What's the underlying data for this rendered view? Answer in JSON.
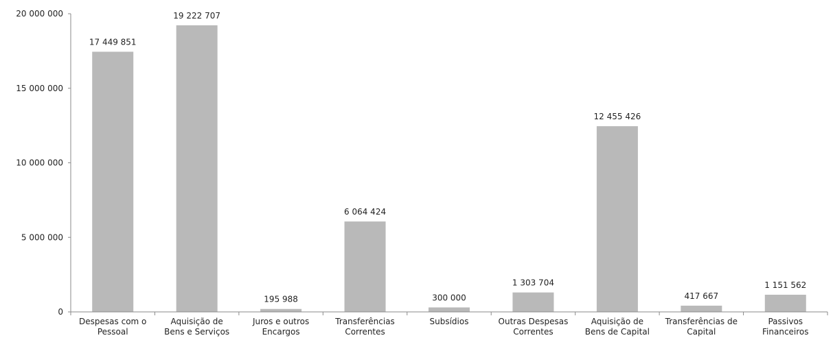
{
  "chart_data": {
    "type": "bar",
    "title": "",
    "xlabel": "",
    "ylabel": "",
    "ylim": [
      0,
      20000000
    ],
    "yticks": [
      0,
      5000000,
      10000000,
      15000000,
      20000000
    ],
    "ytick_labels": [
      "0",
      "5 000 000",
      "10 000 000",
      "15 000 000",
      "20 000 000"
    ],
    "grid": false,
    "legend": "none",
    "bar_color": "#b9b9b9",
    "categories": [
      [
        "Despesas com o",
        "Pessoal"
      ],
      [
        "Aquisição de",
        "Bens e Serviços"
      ],
      [
        "Juros e outros",
        "Encargos"
      ],
      [
        "Transferências",
        "Correntes"
      ],
      [
        "Subsídios"
      ],
      [
        "Outras Despesas",
        "Correntes"
      ],
      [
        "Aquisição de",
        "Bens de Capital"
      ],
      [
        "Transferências de",
        "Capital"
      ],
      [
        "Passivos",
        "Financeiros"
      ]
    ],
    "values": [
      17449851,
      19222707,
      195988,
      6064424,
      300000,
      1303704,
      12455426,
      417667,
      1151562
    ],
    "value_labels": [
      "17 449 851",
      "19 222 707",
      "195 988",
      "6 064 424",
      "300 000",
      "1 303 704",
      "12 455 426",
      "417 667",
      "1 151 562"
    ]
  }
}
